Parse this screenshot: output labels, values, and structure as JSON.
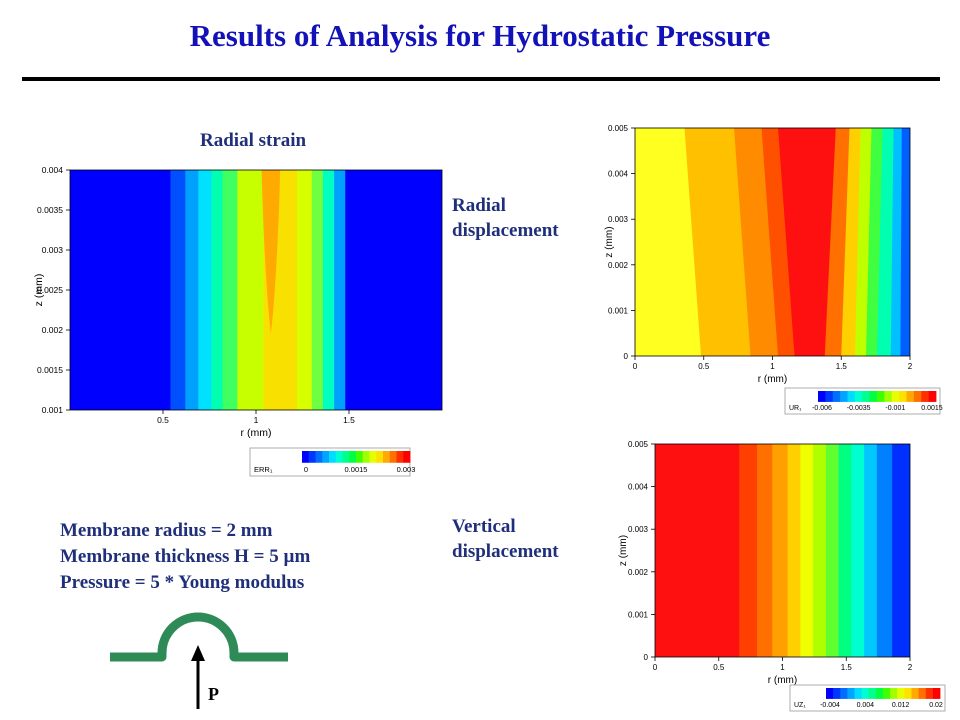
{
  "title": "Results of Analysis for Hydrostatic Pressure",
  "labels": {
    "radial_strain": "Radial strain",
    "radial_disp_line1": "Radial",
    "radial_disp_line2": "displacement",
    "vertical_disp_line1": "Vertical",
    "vertical_disp_line2": "displacement"
  },
  "specs": {
    "line1": "Membrane radius = 2 mm",
    "line2": "Membrane thickness H = 5 µm",
    "line3": "Pressure = 5 * Young modulus"
  },
  "diagram": {
    "pressure_label": "P",
    "arrow_icon": "up-arrow-icon"
  },
  "colors": {
    "title": "#1212b8",
    "text": "#1f2f7a",
    "membrane": "#2e8b57"
  },
  "chart_data": [
    {
      "type": "heatmap",
      "title": "",
      "xlabel": "r (mm)",
      "ylabel": "z (mm)",
      "xlim": [
        0,
        2
      ],
      "ylim": [
        0.001,
        0.004
      ],
      "xticks": [
        "0.5",
        "1",
        "1.5"
      ],
      "yticks": [
        "0.001",
        "0.0015",
        "0.002",
        "0.0025",
        "0.003",
        "0.0035",
        "0.004"
      ],
      "colorbar": {
        "label": "ERR₁",
        "ticks": [
          "0",
          "0.0015",
          "0.003"
        ]
      }
    },
    {
      "type": "heatmap",
      "title": "",
      "xlabel": "r (mm)",
      "ylabel": "z (mm)",
      "xlim": [
        0,
        2
      ],
      "ylim": [
        0,
        0.005
      ],
      "xticks": [
        "0",
        "0.5",
        "1",
        "1.5",
        "2"
      ],
      "yticks": [
        "0",
        "0.001",
        "0.002",
        "0.003",
        "0.004",
        "0.005"
      ],
      "colorbar": {
        "label": "UR₁",
        "ticks": [
          "-0.006",
          "-0.0035",
          "-0.001",
          "0.0015"
        ]
      }
    },
    {
      "type": "heatmap",
      "title": "",
      "xlabel": "r (mm)",
      "ylabel": "z (mm)",
      "xlim": [
        0,
        2
      ],
      "ylim": [
        0,
        0.005
      ],
      "xticks": [
        "0",
        "0.5",
        "1",
        "1.5",
        "2"
      ],
      "yticks": [
        "0",
        "0.001",
        "0.002",
        "0.003",
        "0.004",
        "0.005"
      ],
      "colorbar": {
        "label": "UZ₁",
        "ticks": [
          "-0.004",
          "0.004",
          "0.012",
          "0.02"
        ]
      }
    }
  ]
}
